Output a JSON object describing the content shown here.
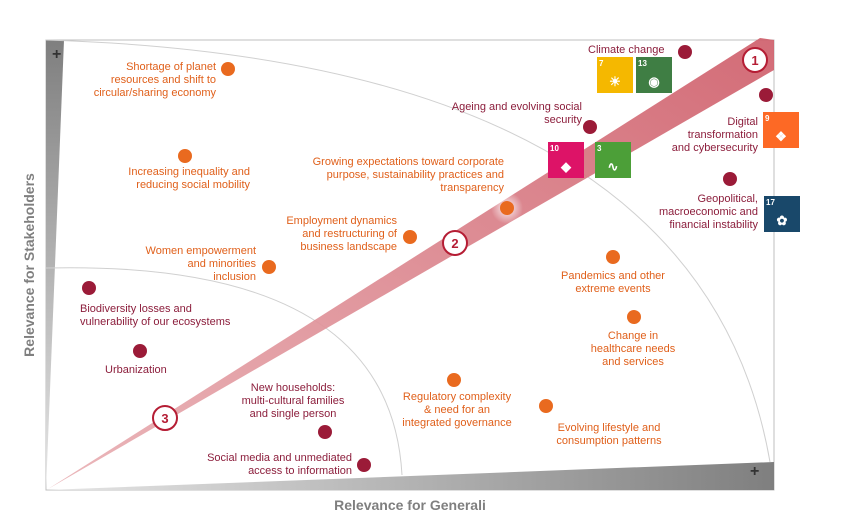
{
  "axes": {
    "y_label": "Relevance for Stakeholders",
    "x_label": "Relevance for Generali",
    "y_plus": "+",
    "x_plus": "+"
  },
  "colors": {
    "orange": "#e96a1f",
    "maroon": "#9b1b38",
    "band": "#d8737c",
    "zone_marker_stroke": "#b51d34",
    "axis_gray": "#a6a6a6"
  },
  "zones": [
    {
      "number": "1"
    },
    {
      "number": "2"
    },
    {
      "number": "3"
    }
  ],
  "megatrends": [
    {
      "id": "climate",
      "label": "Climate change",
      "color": "maroon"
    },
    {
      "id": "ageing",
      "label": "Ageing and evolving social\nsecurity",
      "color": "maroon"
    },
    {
      "id": "digital",
      "label": "Digital\ntransformation\nand cybersecurity",
      "color": "maroon"
    },
    {
      "id": "geopolitical",
      "label": "Geopolitical,\nmacroeconomic and\nfinancial instability",
      "color": "maroon"
    },
    {
      "id": "shortage",
      "label": "Shortage of planet\nresources and shift to\ncircular/sharing economy",
      "color": "orange"
    },
    {
      "id": "inequality",
      "label": "Increasing inequality and\nreducing social mobility",
      "color": "orange"
    },
    {
      "id": "corporate",
      "label": "Growing expectations toward corporate\npurpose, sustainability practices and\ntransparency",
      "color": "orange"
    },
    {
      "id": "employment",
      "label": "Employment dynamics\nand restructuring of\nbusiness landscape",
      "color": "orange"
    },
    {
      "id": "women",
      "label": "Women empowerment\nand minorities\ninclusion",
      "color": "orange"
    },
    {
      "id": "pandemics",
      "label": "Pandemics and other\nextreme events",
      "color": "orange"
    },
    {
      "id": "healthcare",
      "label": "Change in\nhealthcare needs\nand services",
      "color": "orange"
    },
    {
      "id": "regulatory",
      "label": "Regulatory complexity\n& need for an\nintegrated governance",
      "color": "orange"
    },
    {
      "id": "lifestyle",
      "label": "Evolving lifestyle and\nconsumption patterns",
      "color": "orange"
    },
    {
      "id": "biodiversity",
      "label": "Biodiversity losses and\nvulnerability of our ecosystems",
      "color": "maroon"
    },
    {
      "id": "urbanization",
      "label": "Urbanization",
      "color": "maroon"
    },
    {
      "id": "households",
      "label": "New households:\nmulti-cultural families\nand single person",
      "color": "maroon"
    },
    {
      "id": "socialmedia",
      "label": "Social media and unmediated\naccess to information",
      "color": "maroon"
    }
  ],
  "sdg_icons": [
    {
      "number": "7",
      "title": "AFFORDABLE AND CLEAN ENERGY",
      "color": "#f5b800",
      "glyph": "☀"
    },
    {
      "number": "13",
      "title": "CLIMATE ACTION",
      "color": "#3f7e44",
      "glyph": "◉"
    },
    {
      "number": "10",
      "title": "REDUCED INEQUALITIES",
      "color": "#dd1367",
      "glyph": "◆"
    },
    {
      "number": "3",
      "title": "GOOD HEALTH AND WELL-BEING",
      "color": "#4c9f38",
      "glyph": "∿"
    },
    {
      "number": "9",
      "title": "INDUSTRY, INNOVATION AND INFRASTRUCTURE",
      "color": "#fd6925",
      "glyph": "❖"
    },
    {
      "number": "17",
      "title": "PARTNERSHIPS FOR THE GOALS",
      "color": "#19486a",
      "glyph": "✿"
    }
  ]
}
